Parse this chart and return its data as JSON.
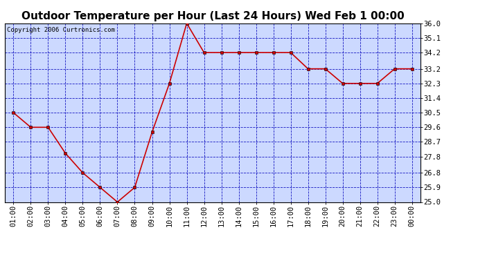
{
  "title": "Outdoor Temperature per Hour (Last 24 Hours) Wed Feb 1 00:00",
  "copyright": "Copyright 2006 Curtronics.com",
  "hours": [
    "01:00",
    "02:00",
    "03:00",
    "04:00",
    "05:00",
    "06:00",
    "07:00",
    "08:00",
    "09:00",
    "10:00",
    "11:00",
    "12:00",
    "13:00",
    "14:00",
    "15:00",
    "16:00",
    "17:00",
    "18:00",
    "19:00",
    "20:00",
    "21:00",
    "22:00",
    "23:00",
    "00:00"
  ],
  "values": [
    30.5,
    29.6,
    29.6,
    28.0,
    26.8,
    25.9,
    25.0,
    25.9,
    29.3,
    32.3,
    36.0,
    34.2,
    34.2,
    34.2,
    34.2,
    34.2,
    34.2,
    33.2,
    33.2,
    32.3,
    32.3,
    32.3,
    33.2,
    33.2
  ],
  "ylim": [
    25.0,
    36.0
  ],
  "yticks": [
    25.0,
    25.9,
    26.8,
    27.8,
    28.7,
    29.6,
    30.5,
    31.4,
    32.3,
    33.2,
    34.2,
    35.1,
    36.0
  ],
  "line_color": "#cc0000",
  "marker": "s",
  "marker_size": 2.5,
  "fig_bg_color": "#ffffff",
  "plot_bg_color": "#ccd9ff",
  "grid_color": "#0000bb",
  "title_fontsize": 11,
  "copyright_fontsize": 6.5,
  "tick_fontsize": 7.5
}
